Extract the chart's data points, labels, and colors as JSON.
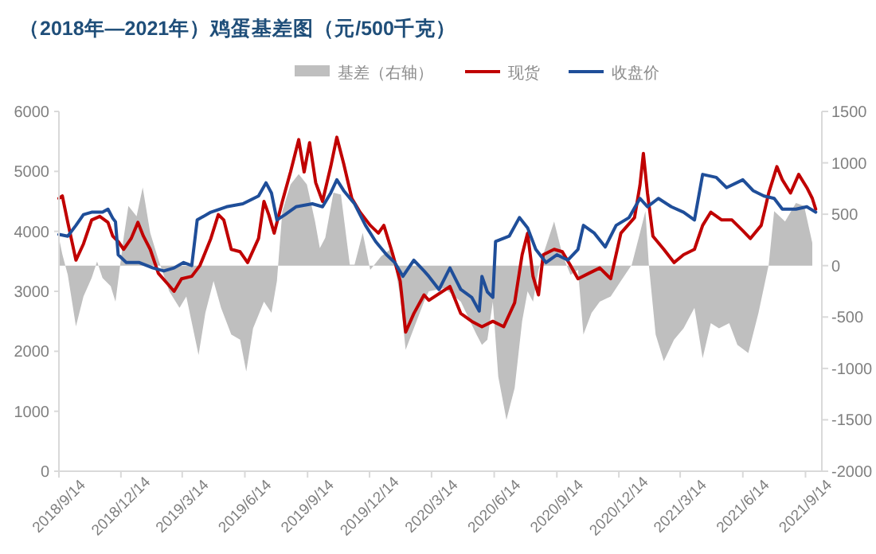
{
  "chart_data": {
    "type": "line",
    "title": "（2018年—2021年）鸡蛋基差图（元/500千克）",
    "xlim": [
      "2018-09-14",
      "2021-10-08"
    ],
    "xticks": [
      {
        "value": "2018-09-14",
        "label": "2018/9/14"
      },
      {
        "value": "2018-12-14",
        "label": "2018/12/14"
      },
      {
        "value": "2019-03-14",
        "label": "2019/3/14"
      },
      {
        "value": "2019-06-14",
        "label": "2019/6/14"
      },
      {
        "value": "2019-09-14",
        "label": "2019/9/14"
      },
      {
        "value": "2019-12-14",
        "label": "2019/12/14"
      },
      {
        "value": "2020-03-14",
        "label": "2020/3/14"
      },
      {
        "value": "2020-06-14",
        "label": "2020/6/14"
      },
      {
        "value": "2020-09-14",
        "label": "2020/9/14"
      },
      {
        "value": "2020-12-14",
        "label": "2020/12/14"
      },
      {
        "value": "2021-03-14",
        "label": "2021/3/14"
      },
      {
        "value": "2021-06-14",
        "label": "2021/6/14"
      },
      {
        "value": "2021-09-14",
        "label": "2021/9/14"
      }
    ],
    "ylim": [
      0,
      6000
    ],
    "yticks": [
      0,
      1000,
      2000,
      3000,
      4000,
      5000,
      6000
    ],
    "y2lim": [
      -2000,
      1500
    ],
    "y2ticks": [
      -2000,
      -1500,
      -1000,
      -500,
      0,
      500,
      1000,
      1500
    ],
    "legend": "top",
    "series": [
      {
        "name": "基差（右轴）",
        "type": "area",
        "axis": "y2",
        "color": "#bfbfbf",
        "x": [
          "2018-09-14",
          "2018-09-19",
          "2018-09-27",
          "2018-10-09",
          "2018-10-20",
          "2018-11-01",
          "2018-11-09",
          "2018-11-17",
          "2018-11-29",
          "2018-12-06",
          "2018-12-18",
          "2018-12-25",
          "2019-01-06",
          "2019-01-15",
          "2019-01-26",
          "2019-02-07",
          "2019-02-23",
          "2019-03-10",
          "2019-03-20",
          "2019-04-07",
          "2019-04-17",
          "2019-04-29",
          "2019-05-10",
          "2019-05-25",
          "2019-06-07",
          "2019-06-16",
          "2019-06-26",
          "2019-07-12",
          "2019-07-23",
          "2019-07-31",
          "2019-08-08",
          "2019-08-20",
          "2019-09-01",
          "2019-09-13",
          "2019-09-25",
          "2019-10-02",
          "2019-10-10",
          "2019-10-22",
          "2019-11-02",
          "2019-11-15",
          "2019-11-22",
          "2019-12-04",
          "2019-12-15",
          "2019-12-31",
          "2020-01-16",
          "2020-01-28",
          "2020-02-05",
          "2020-02-17",
          "2020-03-03",
          "2020-03-10",
          "2020-04-02",
          "2020-04-26",
          "2020-05-19",
          "2020-05-27",
          "2020-06-04",
          "2020-06-12",
          "2020-06-20",
          "2020-07-02",
          "2020-07-14",
          "2020-07-25",
          "2020-08-02",
          "2020-08-10",
          "2020-08-18",
          "2020-08-25",
          "2020-09-10",
          "2020-09-22",
          "2020-10-04",
          "2020-10-15",
          "2020-10-23",
          "2020-11-04",
          "2020-11-16",
          "2020-12-02",
          "2020-12-17",
          "2021-01-02",
          "2021-01-14",
          "2021-01-22",
          "2021-01-27",
          "2021-02-06",
          "2021-02-18",
          "2021-03-05",
          "2021-03-19",
          "2021-04-04",
          "2021-04-16",
          "2021-04-28",
          "2021-05-10",
          "2021-05-25",
          "2021-06-06",
          "2021-06-22",
          "2021-07-07",
          "2021-07-22",
          "2021-07-30",
          "2021-08-15",
          "2021-08-31",
          "2021-09-12",
          "2021-09-24"
        ],
        "values": [
          270,
          110,
          -90,
          -590,
          -300,
          -120,
          40,
          -120,
          -200,
          -350,
          270,
          580,
          480,
          760,
          320,
          60,
          -250,
          -410,
          -300,
          -870,
          -460,
          -150,
          -410,
          -670,
          -720,
          -1030,
          -610,
          -350,
          -460,
          -150,
          530,
          790,
          890,
          790,
          430,
          170,
          270,
          710,
          690,
          10,
          10,
          320,
          -40,
          90,
          170,
          -300,
          -820,
          -610,
          -350,
          -250,
          -220,
          -350,
          -670,
          -770,
          -720,
          -350,
          -1080,
          -1500,
          -1190,
          -540,
          -250,
          -350,
          -40,
          110,
          430,
          110,
          -90,
          -40,
          -670,
          -460,
          -350,
          -300,
          -150,
          10,
          320,
          530,
          10,
          -670,
          -930,
          -720,
          -610,
          -410,
          -900,
          -560,
          -610,
          -560,
          -770,
          -850,
          -460,
          10,
          530,
          430,
          610,
          580,
          220
        ]
      },
      {
        "name": "现货",
        "type": "line",
        "color": "#c00000",
        "x": [
          "2018-09-14",
          "2018-09-19",
          "2018-09-27",
          "2018-10-09",
          "2018-10-20",
          "2018-11-01",
          "2018-11-13",
          "2018-11-25",
          "2018-12-02",
          "2018-12-10",
          "2018-12-18",
          "2018-12-29",
          "2019-01-08",
          "2019-01-16",
          "2019-01-26",
          "2019-02-07",
          "2019-02-21",
          "2019-03-02",
          "2019-03-13",
          "2019-03-28",
          "2019-04-09",
          "2019-04-25",
          "2019-05-06",
          "2019-05-14",
          "2019-05-25",
          "2019-06-07",
          "2019-06-18",
          "2019-07-04",
          "2019-07-12",
          "2019-07-19",
          "2019-07-27",
          "2019-08-08",
          "2019-08-20",
          "2019-09-01",
          "2019-09-09",
          "2019-09-17",
          "2019-09-26",
          "2019-10-06",
          "2019-10-18",
          "2019-10-27",
          "2019-11-06",
          "2019-11-18",
          "2019-11-30",
          "2019-12-15",
          "2019-12-27",
          "2020-01-04",
          "2020-01-16",
          "2020-01-28",
          "2020-02-05",
          "2020-02-17",
          "2020-03-03",
          "2020-03-10",
          "2020-04-10",
          "2020-04-26",
          "2020-05-12",
          "2020-05-27",
          "2020-06-12",
          "2020-06-28",
          "2020-07-14",
          "2020-07-25",
          "2020-08-02",
          "2020-08-10",
          "2020-08-18",
          "2020-08-25",
          "2020-09-10",
          "2020-09-22",
          "2020-10-04",
          "2020-10-15",
          "2020-10-31",
          "2020-11-16",
          "2020-12-02",
          "2020-12-17",
          "2021-01-06",
          "2021-01-14",
          "2021-01-19",
          "2021-01-25",
          "2021-02-02",
          "2021-02-18",
          "2021-03-05",
          "2021-03-19",
          "2021-04-04",
          "2021-04-16",
          "2021-04-28",
          "2021-05-14",
          "2021-05-29",
          "2021-06-14",
          "2021-06-25",
          "2021-07-11",
          "2021-07-22",
          "2021-08-03",
          "2021-08-11",
          "2021-08-23",
          "2021-09-04",
          "2021-09-16",
          "2021-09-24",
          "2021-09-29"
        ],
        "values": [
          4550,
          4590,
          4150,
          3520,
          3790,
          4190,
          4250,
          4150,
          3920,
          3830,
          3700,
          3880,
          4150,
          3920,
          3700,
          3300,
          3120,
          3000,
          3210,
          3250,
          3430,
          3880,
          4280,
          4190,
          3700,
          3660,
          3480,
          3880,
          4500,
          4280,
          3970,
          4500,
          4990,
          5530,
          4990,
          5480,
          4810,
          4500,
          5080,
          5570,
          5130,
          4550,
          4320,
          4100,
          3970,
          4100,
          3660,
          3170,
          2320,
          2630,
          2940,
          2850,
          3080,
          2630,
          2500,
          2410,
          2500,
          2410,
          2810,
          3610,
          3970,
          3250,
          2940,
          3610,
          3700,
          3660,
          3430,
          3210,
          3300,
          3390,
          3210,
          3970,
          4230,
          4770,
          5300,
          4640,
          3920,
          3700,
          3480,
          3610,
          3700,
          4100,
          4320,
          4190,
          4190,
          4010,
          3880,
          4100,
          4640,
          5080,
          4860,
          4640,
          4950,
          4730,
          4550,
          4370
        ]
      },
      {
        "name": "收盘价",
        "type": "line",
        "color": "#1f4e99",
        "x": [
          "2018-09-14",
          "2018-09-27",
          "2018-10-09",
          "2018-10-20",
          "2018-11-01",
          "2018-11-17",
          "2018-11-25",
          "2018-12-02",
          "2018-12-06",
          "2018-12-10",
          "2018-12-22",
          "2019-01-10",
          "2019-01-30",
          "2019-02-15",
          "2019-03-02",
          "2019-03-16",
          "2019-03-28",
          "2019-04-05",
          "2019-04-25",
          "2019-05-18",
          "2019-06-11",
          "2019-07-04",
          "2019-07-15",
          "2019-07-23",
          "2019-07-31",
          "2019-08-12",
          "2019-08-28",
          "2019-09-21",
          "2019-10-06",
          "2019-10-18",
          "2019-10-27",
          "2019-11-06",
          "2019-11-22",
          "2019-12-08",
          "2019-12-23",
          "2020-01-08",
          "2020-01-20",
          "2020-02-01",
          "2020-02-17",
          "2020-03-03",
          "2020-03-10",
          "2020-03-25",
          "2020-04-10",
          "2020-04-26",
          "2020-05-12",
          "2020-05-23",
          "2020-05-27",
          "2020-06-04",
          "2020-06-12",
          "2020-06-16",
          "2020-07-06",
          "2020-07-21",
          "2020-08-02",
          "2020-08-14",
          "2020-08-29",
          "2020-09-14",
          "2020-09-30",
          "2020-10-15",
          "2020-10-23",
          "2020-11-08",
          "2020-11-24",
          "2020-12-10",
          "2020-12-29",
          "2021-01-14",
          "2021-01-25",
          "2021-02-10",
          "2021-03-01",
          "2021-03-19",
          "2021-04-04",
          "2021-04-16",
          "2021-05-06",
          "2021-05-21",
          "2021-06-14",
          "2021-06-29",
          "2021-07-15",
          "2021-07-30",
          "2021-08-11",
          "2021-08-31",
          "2021-09-16",
          "2021-09-29"
        ],
        "values": [
          3950,
          3920,
          4100,
          4280,
          4320,
          4320,
          4370,
          4220,
          4160,
          3610,
          3480,
          3480,
          3390,
          3340,
          3390,
          3480,
          3430,
          4190,
          4320,
          4410,
          4460,
          4590,
          4810,
          4640,
          4190,
          4280,
          4410,
          4460,
          4410,
          4640,
          4860,
          4680,
          4460,
          4100,
          3830,
          3610,
          3480,
          3250,
          3520,
          3340,
          3250,
          3030,
          3390,
          3030,
          2900,
          2670,
          3250,
          2990,
          2900,
          3830,
          3920,
          4230,
          4060,
          3700,
          3480,
          3610,
          3520,
          3700,
          4100,
          3970,
          3740,
          4100,
          4230,
          4550,
          4410,
          4550,
          4410,
          4320,
          4190,
          4950,
          4900,
          4730,
          4860,
          4680,
          4590,
          4550,
          4370,
          4370,
          4410,
          4320
        ]
      }
    ]
  }
}
